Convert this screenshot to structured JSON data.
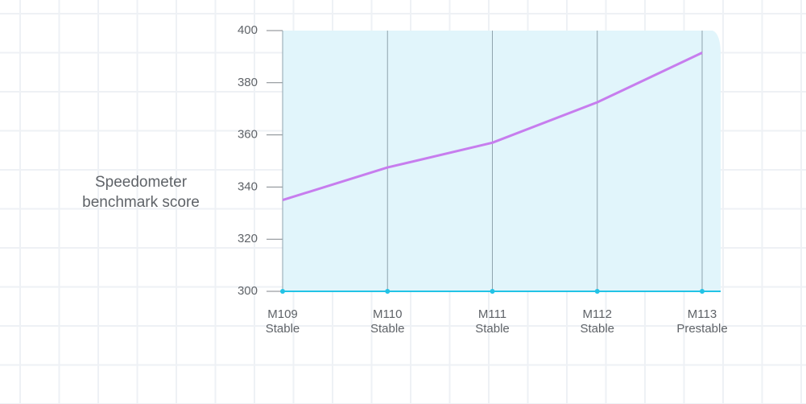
{
  "chart_data": {
    "type": "line",
    "y_label": [
      "Speedometer",
      "benchmark score"
    ],
    "categories": [
      [
        "M109",
        "Stable"
      ],
      [
        "M110",
        "Stable"
      ],
      [
        "M111",
        "Stable"
      ],
      [
        "M112",
        "Stable"
      ],
      [
        "M113",
        "Prestable"
      ]
    ],
    "series": [
      {
        "color": "#c77dee",
        "values": [
          335,
          347.5,
          357,
          372.5,
          391.5
        ]
      }
    ],
    "ylim": [
      300,
      400
    ],
    "yticks": [
      300,
      320,
      340,
      360,
      380,
      400
    ],
    "plot_color": "#e1f5fb",
    "axis_color": "#22c3e6",
    "grid": true
  }
}
